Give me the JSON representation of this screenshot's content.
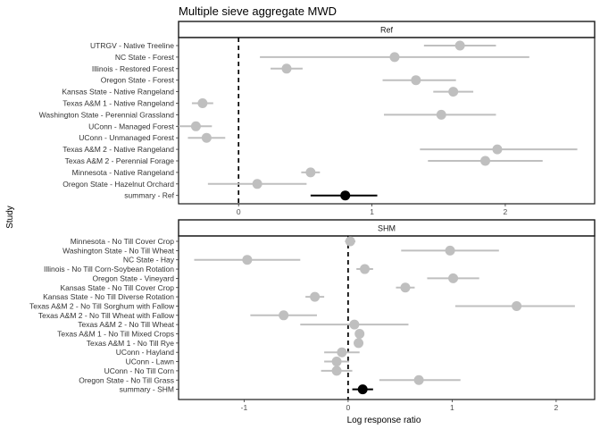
{
  "chart_data": {
    "type": "forest",
    "title": "Multiple sieve aggregate MWD",
    "xlabel": "Log response ratio",
    "ylabel": "Study",
    "null_line": 0,
    "colors": {
      "study_point": "#bfbfbf",
      "study_ci": "#bfbfbf",
      "summary": "#000000",
      "strip_fill": "#ffffff",
      "null_line": "#000000"
    },
    "panels": [
      {
        "name": "Ref",
        "xlim": [
          -0.45,
          2.67
        ],
        "xticks": [
          0,
          1,
          2
        ],
        "studies": [
          {
            "label": "UTRGV - Native Treeline",
            "estimate": 1.66,
            "ci": [
              1.39,
              1.93
            ]
          },
          {
            "label": "NC State - Forest",
            "estimate": 1.17,
            "ci": [
              0.16,
              2.18
            ]
          },
          {
            "label": "Illinois - Restored Forest",
            "estimate": 0.36,
            "ci": [
              0.24,
              0.48
            ]
          },
          {
            "label": "Oregon State - Forest",
            "estimate": 1.33,
            "ci": [
              1.08,
              1.63
            ]
          },
          {
            "label": "Kansas State - Native Rangeland",
            "estimate": 1.61,
            "ci": [
              1.46,
              1.76
            ]
          },
          {
            "label": "Texas A&M 1 - Native Rangeland",
            "estimate": -0.27,
            "ci": [
              -0.35,
              -0.19
            ]
          },
          {
            "label": "Washington State - Perennial Grassland",
            "estimate": 1.52,
            "ci": [
              1.09,
              1.93
            ]
          },
          {
            "label": "UConn - Managed Forest",
            "estimate": -0.32,
            "ci": [
              -0.45,
              -0.2
            ]
          },
          {
            "label": "UConn - Unmanaged Forest",
            "estimate": -0.24,
            "ci": [
              -0.38,
              -0.1
            ]
          },
          {
            "label": "Texas A&M 2 - Native Rangeland",
            "estimate": 1.94,
            "ci": [
              1.36,
              2.54
            ]
          },
          {
            "label": "Texas A&M 2 - Perennial Forage",
            "estimate": 1.85,
            "ci": [
              1.42,
              2.28
            ]
          },
          {
            "label": "Minnesota - Native Rangeland",
            "estimate": 0.54,
            "ci": [
              0.47,
              0.61
            ]
          },
          {
            "label": "Oregon State - Hazelnut Orchard",
            "estimate": 0.14,
            "ci": [
              -0.23,
              0.51
            ]
          }
        ],
        "summary": {
          "label": "summary - Ref",
          "estimate": 0.8,
          "ci": [
            0.54,
            1.04
          ]
        }
      },
      {
        "name": "SHM",
        "xlim": [
          -1.63,
          2.37
        ],
        "xticks": [
          -1,
          0,
          1,
          2
        ],
        "studies": [
          {
            "label": "Minnesota - No Till Cover Crop",
            "estimate": 0.02,
            "ci": [
              -0.03,
              0.07
            ]
          },
          {
            "label": "Washington State - No Till Wheat",
            "estimate": 0.98,
            "ci": [
              0.51,
              1.45
            ]
          },
          {
            "label": "NC State - Hay",
            "estimate": -0.97,
            "ci": [
              -1.48,
              -0.46
            ]
          },
          {
            "label": "Illinois - No Till Corn-Soybean Rotation",
            "estimate": 0.16,
            "ci": [
              0.08,
              0.24
            ]
          },
          {
            "label": "Oregon State - Vineyard",
            "estimate": 1.01,
            "ci": [
              0.76,
              1.26
            ]
          },
          {
            "label": "Kansas State - No Till Cover Crop",
            "estimate": 0.55,
            "ci": [
              0.46,
              0.64
            ]
          },
          {
            "label": "Kansas State - No Till Diverse Rotation",
            "estimate": -0.32,
            "ci": [
              -0.41,
              -0.23
            ]
          },
          {
            "label": "Texas A&M 2 - No Till Sorghum with Fallow",
            "estimate": 1.62,
            "ci": [
              1.03,
              2.18
            ]
          },
          {
            "label": "Texas A&M 2 - No Till Wheat with Fallow",
            "estimate": -0.62,
            "ci": [
              -0.94,
              -0.3
            ]
          },
          {
            "label": "Texas A&M 2 - No Till Wheat",
            "estimate": 0.06,
            "ci": [
              -0.46,
              0.58
            ]
          },
          {
            "label": "Texas A&M 1 - No Till Mixed Crops",
            "estimate": 0.11,
            "ci": [
              0.07,
              0.15
            ]
          },
          {
            "label": "Texas A&M 1 - No Till Rye",
            "estimate": 0.1,
            "ci": [
              0.06,
              0.14
            ]
          },
          {
            "label": "UConn - Hayland",
            "estimate": -0.06,
            "ci": [
              -0.23,
              0.11
            ]
          },
          {
            "label": "UConn - Lawn",
            "estimate": -0.11,
            "ci": [
              -0.23,
              0.01
            ]
          },
          {
            "label": "UConn - No Till Corn",
            "estimate": -0.11,
            "ci": [
              -0.26,
              0.04
            ]
          },
          {
            "label": "Oregon State - No Till Grass",
            "estimate": 0.68,
            "ci": [
              0.3,
              1.08
            ]
          }
        ],
        "summary": {
          "label": "summary - SHM",
          "estimate": 0.14,
          "ci": [
            0.04,
            0.24
          ]
        }
      }
    ]
  }
}
